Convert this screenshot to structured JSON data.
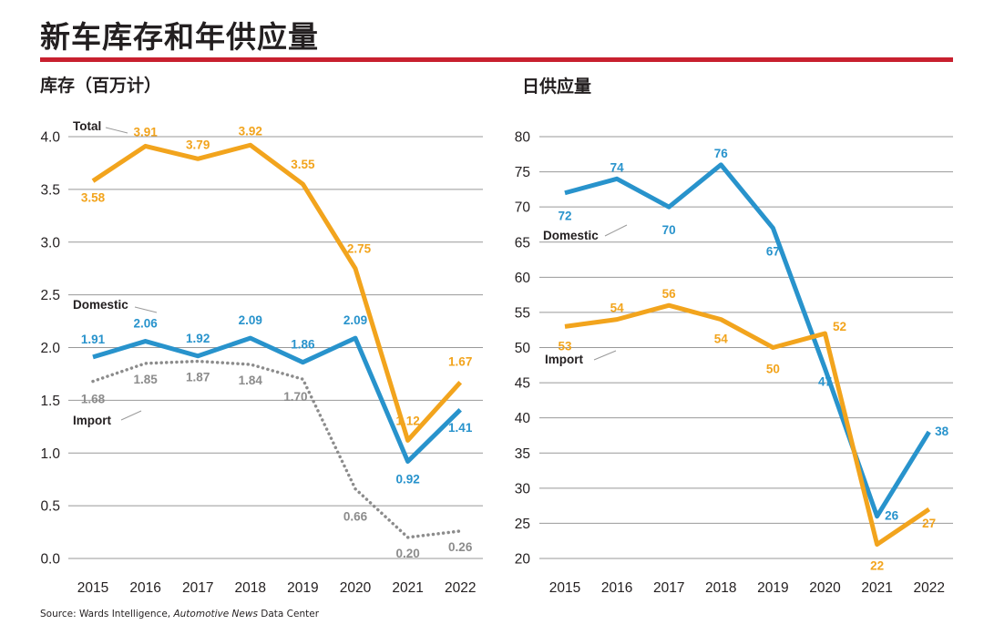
{
  "header": {
    "title": "新车库存和年供应量"
  },
  "source": {
    "prefix": "Source: Wards Intelligence, ",
    "italic": "Automotive News",
    "suffix": " Data Center"
  },
  "colors": {
    "total": "#f2a41d",
    "domestic": "#2893cc",
    "import": "#8c8c8c",
    "accent_rule": "#c8202f",
    "grid": "#999999"
  },
  "chart_data": [
    {
      "type": "line",
      "title": "库存（百万计）",
      "xlabel": "",
      "ylabel": "",
      "x": [
        "2015",
        "2016",
        "2017",
        "2018",
        "2019",
        "2020",
        "2021",
        "2022"
      ],
      "ylim": [
        0,
        4
      ],
      "yticks": [
        "0.0",
        "0.5",
        "1.0",
        "1.5",
        "2.0",
        "2.5",
        "3.0",
        "3.5",
        "4.0"
      ],
      "grid": true,
      "series": [
        {
          "name": "Total",
          "color": "#f2a41d",
          "style": "solid",
          "values": [
            3.58,
            3.91,
            3.79,
            3.92,
            3.55,
            2.75,
            1.12,
            1.67
          ],
          "labels": [
            "3.58",
            "3.91",
            "3.79",
            "3.92",
            "3.55",
            "2.75",
            "1.12",
            "1.67"
          ]
        },
        {
          "name": "Domestic",
          "color": "#2893cc",
          "style": "solid",
          "values": [
            1.91,
            2.06,
            1.92,
            2.09,
            1.86,
            2.09,
            0.92,
            1.41
          ],
          "labels": [
            "1.91",
            "2.06",
            "1.92",
            "2.09",
            "1.86",
            "2.09",
            "0.92",
            "1.41"
          ]
        },
        {
          "name": "Import",
          "color": "#8c8c8c",
          "style": "dotted",
          "values": [
            1.68,
            1.85,
            1.87,
            1.84,
            1.7,
            0.66,
            0.2,
            0.26
          ],
          "labels": [
            "1.68",
            "1.85",
            "1.87",
            "1.84",
            "1.70",
            "0.66",
            "0.20",
            "0.26"
          ]
        }
      ]
    },
    {
      "type": "line",
      "title": "日供应量",
      "xlabel": "",
      "ylabel": "",
      "x": [
        "2015",
        "2016",
        "2017",
        "2018",
        "2019",
        "2020",
        "2021",
        "2022"
      ],
      "ylim": [
        20,
        80
      ],
      "yticks": [
        "20",
        "25",
        "30",
        "35",
        "40",
        "45",
        "50",
        "55",
        "60",
        "65",
        "70",
        "75",
        "80"
      ],
      "grid": true,
      "series": [
        {
          "name": "Domestic",
          "color": "#2893cc",
          "style": "solid",
          "values": [
            72,
            74,
            70,
            76,
            67,
            47,
            26,
            38
          ],
          "labels": [
            "72",
            "74",
            "70",
            "76",
            "67",
            "47",
            "26",
            "38"
          ]
        },
        {
          "name": "Import",
          "color": "#f2a41d",
          "style": "solid",
          "values": [
            53,
            54,
            56,
            54,
            50,
            52,
            22,
            27
          ],
          "labels": [
            "53",
            "54",
            "56",
            "54",
            "50",
            "52",
            "22",
            "27"
          ]
        }
      ]
    }
  ]
}
